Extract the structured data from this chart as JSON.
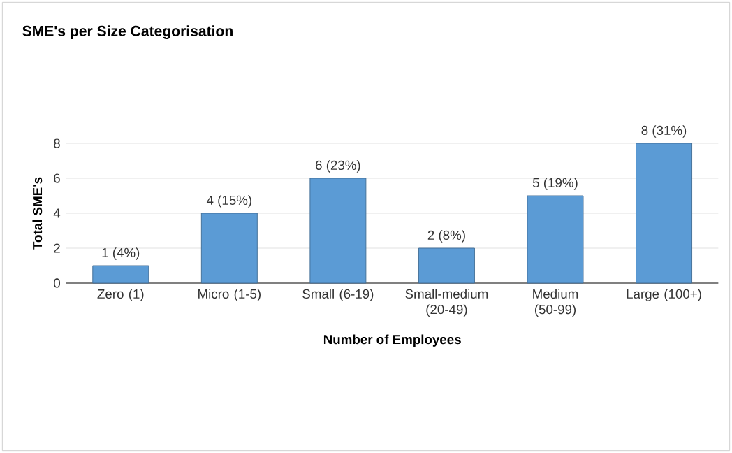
{
  "chart_data": {
    "type": "bar",
    "title": "SME's per Size Categorisation",
    "xlabel": "Number of Employees",
    "ylabel": "Total SME's",
    "categories": [
      "Zero (1)",
      "Micro (1-5)",
      "Small (6-19)",
      "Small-medium (20-49)",
      "Medium (50-99)",
      "Large (100+)"
    ],
    "values": [
      1,
      4,
      6,
      2,
      5,
      8
    ],
    "value_labels": [
      "1 (4%)",
      "4 (15%)",
      "6 (23%)",
      "2 (8%)",
      "5 (19%)",
      "8 (31%)"
    ],
    "color": "#5b9bd5",
    "ylim": [
      0,
      8
    ],
    "yticks": [
      0,
      2,
      4,
      6,
      8
    ],
    "grid": "y"
  }
}
